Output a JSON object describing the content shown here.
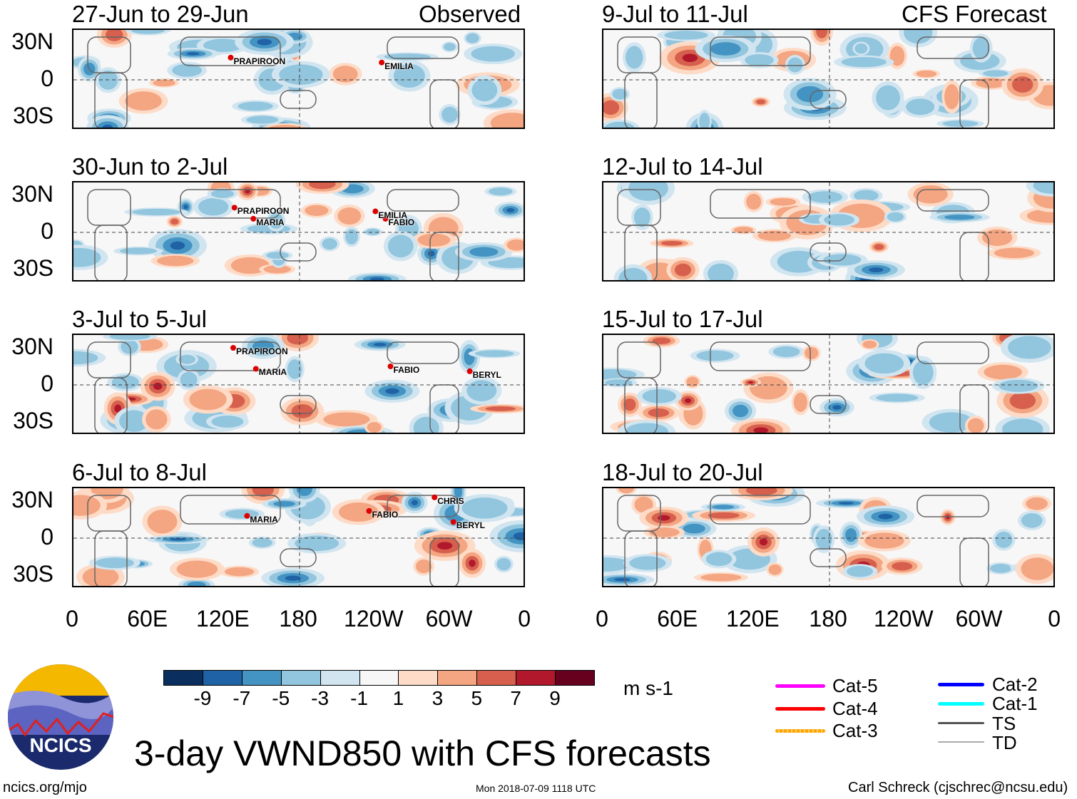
{
  "header": {
    "left_label": "Observed",
    "right_label": "CFS Forecast"
  },
  "panels_observed": [
    {
      "title": "27-Jun to 29-Jun",
      "storms": [
        {
          "name": "PRAPIROON",
          "lon": 125,
          "lat": 18
        },
        {
          "name": "EMILIA",
          "lon": -115,
          "lat": 14
        }
      ]
    },
    {
      "title": "30-Jun to 2-Jul",
      "storms": [
        {
          "name": "PRAPIROON",
          "lon": 128,
          "lat": 20
        },
        {
          "name": "MARIA",
          "lon": 143,
          "lat": 11
        },
        {
          "name": "EMILIA",
          "lon": -120,
          "lat": 17
        },
        {
          "name": "FABIO",
          "lon": -112,
          "lat": 11
        }
      ]
    },
    {
      "title": "3-Jul to 5-Jul",
      "storms": [
        {
          "name": "PRAPIROON",
          "lon": 127,
          "lat": 30
        },
        {
          "name": "MARIA",
          "lon": 145,
          "lat": 13
        },
        {
          "name": "FABIO",
          "lon": -108,
          "lat": 15
        },
        {
          "name": "BERYL",
          "lon": -45,
          "lat": 11
        }
      ]
    },
    {
      "title": "6-Jul to 8-Jul",
      "storms": [
        {
          "name": "MARIA",
          "lon": 138,
          "lat": 18
        },
        {
          "name": "FABIO",
          "lon": -125,
          "lat": 22
        },
        {
          "name": "CHRIS",
          "lon": -73,
          "lat": 33
        },
        {
          "name": "BERYL",
          "lon": -58,
          "lat": 13
        }
      ]
    }
  ],
  "panels_forecast": [
    {
      "title": "9-Jul to 11-Jul"
    },
    {
      "title": "12-Jul to 14-Jul"
    },
    {
      "title": "15-Jul to 17-Jul"
    },
    {
      "title": "18-Jul to 20-Jul"
    }
  ],
  "lat_labels": [
    "30N",
    "0",
    "30S"
  ],
  "lon_labels": [
    "0",
    "60E",
    "120E",
    "180",
    "120W",
    "60W",
    "0"
  ],
  "colorbar": {
    "labels": [
      "-9",
      "-7",
      "-5",
      "-3",
      "-1",
      "1",
      "3",
      "5",
      "7",
      "9"
    ],
    "colors": [
      "#0a2f5e",
      "#1f62a6",
      "#4393c3",
      "#92c5de",
      "#d1e5f0",
      "#f7f7f7",
      "#fddbc7",
      "#f4a582",
      "#d6604d",
      "#b2182b",
      "#67001f"
    ],
    "units": "m s-1"
  },
  "legend": [
    {
      "label": "Cat-5",
      "color": "#ff00ff"
    },
    {
      "label": "Cat-4",
      "color": "#ff0000"
    },
    {
      "label": "Cat-3",
      "color": "#ffa500"
    },
    {
      "label": "Cat-2",
      "color": "#0000ff"
    },
    {
      "label": "Cat-1",
      "color": "#00ffff"
    },
    {
      "label": "TS",
      "color": "#555555"
    },
    {
      "label": "TD",
      "color": "#aaaaaa"
    }
  ],
  "title": "3-day VWND850 with CFS forecasts",
  "logo_text": "NCICS",
  "footer": {
    "left": "ncics.org/mjo",
    "center": "Mon 2018-07-09 1118 UTC",
    "right": "Carl Schreck (cjschrec@ncsu.edu)"
  }
}
